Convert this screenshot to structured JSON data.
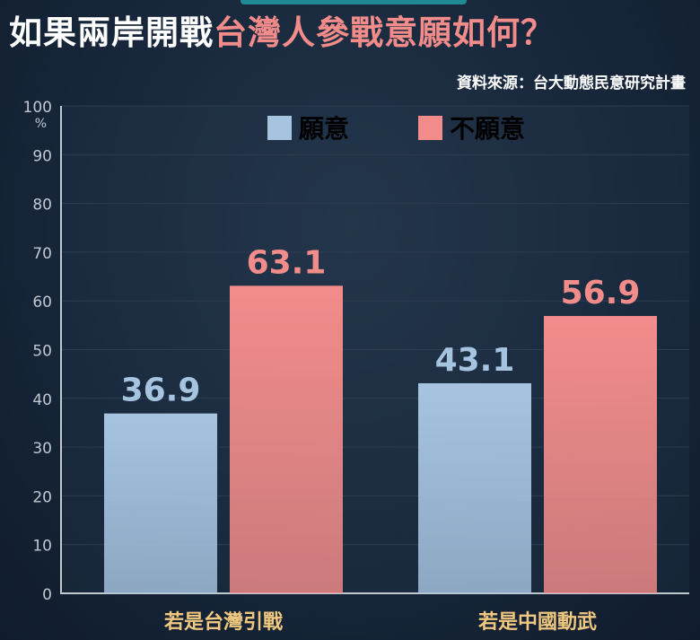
{
  "title": {
    "part1": "如果兩岸開戰",
    "part2": "台灣人參戰意願如何？"
  },
  "source": "資料來源：台大動態民意研究計畫",
  "colors": {
    "willing": "#a6c3e0",
    "unwilling": "#f28c8a",
    "category_label": "#f0c880",
    "axis": "#c0c8d2",
    "grid": "#2c3d52"
  },
  "chart_data": {
    "type": "bar",
    "categories": [
      "若是台灣引戰",
      "若是中國動武"
    ],
    "series": [
      {
        "name": "願意",
        "values": [
          36.9,
          43.1
        ]
      },
      {
        "name": "不願意",
        "values": [
          63.1,
          56.9
        ]
      }
    ],
    "ylim": [
      0,
      100
    ],
    "yticks": [
      "0",
      "10",
      "20",
      "30",
      "40",
      "50",
      "60",
      "70",
      "80",
      "90",
      "100"
    ],
    "yunit": "%",
    "grid": true,
    "legend": "top-center"
  }
}
